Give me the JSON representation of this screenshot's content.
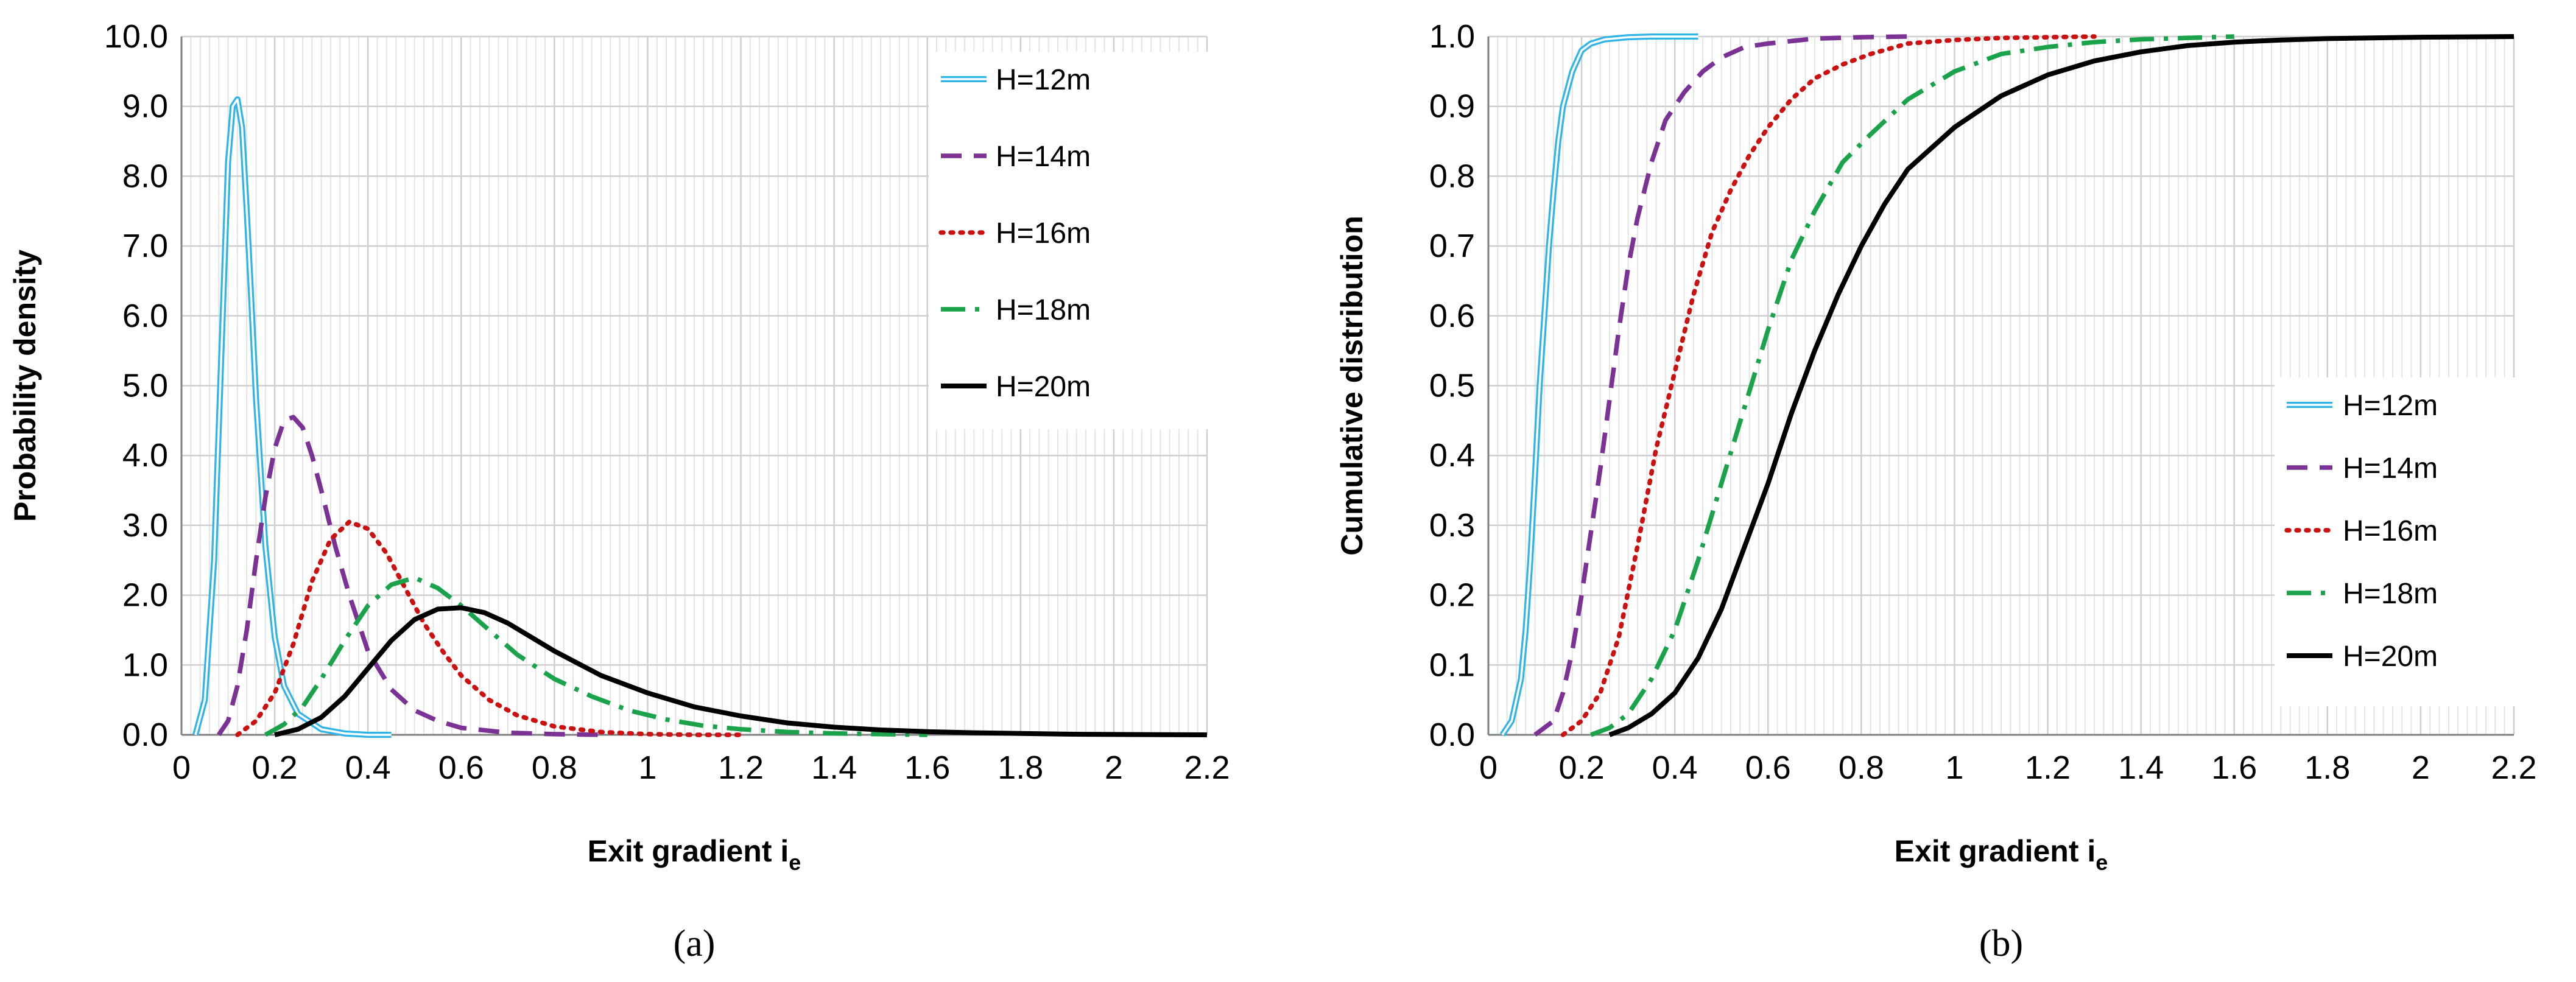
{
  "chart_data": [
    {
      "type": "line",
      "panel": "a",
      "panel_label": "(a)",
      "xlabel": "Exit gradient i",
      "xlabel_sub": "e",
      "ylabel": "Probability density",
      "xlim": [
        0,
        2.2
      ],
      "ylim": [
        0,
        10
      ],
      "x_ticks": [
        0,
        0.2,
        0.4,
        0.6,
        0.8,
        1,
        1.2,
        1.4,
        1.6,
        1.8,
        2,
        2.2
      ],
      "x_tick_labels": [
        "0",
        "0.2",
        "0.4",
        "0.6",
        "0.8",
        "1",
        "1.2",
        "1.4",
        "1.6",
        "1.8",
        "2",
        "2.2"
      ],
      "y_ticks": [
        0,
        1,
        2,
        3,
        4,
        5,
        6,
        7,
        8,
        9,
        10
      ],
      "y_tick_labels": [
        "0.0",
        "1.0",
        "2.0",
        "3.0",
        "4.0",
        "5.0",
        "6.0",
        "7.0",
        "8.0",
        "9.0",
        "10.0"
      ],
      "grid": true,
      "legend_position": "top-right",
      "series": [
        {
          "name": "H=12m",
          "color": "#2eb4e6",
          "style": "double",
          "x": [
            0.03,
            0.05,
            0.07,
            0.09,
            0.1,
            0.11,
            0.12,
            0.13,
            0.14,
            0.15,
            0.16,
            0.18,
            0.2,
            0.22,
            0.25,
            0.3,
            0.35,
            0.4,
            0.45
          ],
          "y": [
            0.0,
            0.5,
            2.5,
            6.3,
            8.2,
            9.0,
            9.1,
            8.7,
            7.5,
            6.2,
            4.8,
            2.7,
            1.4,
            0.7,
            0.3,
            0.08,
            0.02,
            0.0,
            0.0
          ]
        },
        {
          "name": "H=14m",
          "color": "#7b3294",
          "style": "dash",
          "x": [
            0.08,
            0.1,
            0.12,
            0.14,
            0.16,
            0.18,
            0.2,
            0.22,
            0.24,
            0.26,
            0.28,
            0.3,
            0.33,
            0.36,
            0.4,
            0.45,
            0.5,
            0.55,
            0.6,
            0.7,
            0.8,
            0.9
          ],
          "y": [
            0.0,
            0.2,
            0.7,
            1.5,
            2.5,
            3.4,
            4.1,
            4.5,
            4.55,
            4.4,
            4.0,
            3.5,
            2.7,
            2.0,
            1.2,
            0.65,
            0.35,
            0.2,
            0.1,
            0.03,
            0.01,
            0.0
          ]
        },
        {
          "name": "H=16m",
          "color": "#cc1111",
          "style": "dot",
          "x": [
            0.12,
            0.16,
            0.2,
            0.24,
            0.28,
            0.32,
            0.36,
            0.4,
            0.44,
            0.48,
            0.52,
            0.56,
            0.6,
            0.66,
            0.72,
            0.8,
            0.9,
            1.0,
            1.1,
            1.2
          ],
          "y": [
            0.0,
            0.2,
            0.6,
            1.3,
            2.2,
            2.8,
            3.05,
            2.95,
            2.6,
            2.1,
            1.6,
            1.2,
            0.85,
            0.5,
            0.28,
            0.12,
            0.04,
            0.01,
            0.0,
            0.0
          ]
        },
        {
          "name": "H=18m",
          "color": "#1aa34a",
          "style": "dashdot",
          "x": [
            0.18,
            0.22,
            0.26,
            0.3,
            0.35,
            0.4,
            0.45,
            0.5,
            0.55,
            0.6,
            0.66,
            0.72,
            0.8,
            0.88,
            0.96,
            1.04,
            1.12,
            1.2,
            1.3,
            1.4,
            1.5,
            1.6
          ],
          "y": [
            0.0,
            0.15,
            0.4,
            0.8,
            1.35,
            1.85,
            2.15,
            2.25,
            2.1,
            1.85,
            1.5,
            1.15,
            0.8,
            0.55,
            0.35,
            0.22,
            0.13,
            0.08,
            0.04,
            0.02,
            0.01,
            0.0
          ]
        },
        {
          "name": "H=20m",
          "color": "#000000",
          "style": "solid",
          "x": [
            0.2,
            0.25,
            0.3,
            0.35,
            0.4,
            0.45,
            0.5,
            0.55,
            0.6,
            0.65,
            0.7,
            0.75,
            0.8,
            0.9,
            1.0,
            1.1,
            1.2,
            1.3,
            1.4,
            1.5,
            1.6,
            1.7,
            1.8,
            1.9,
            2.0,
            2.2
          ],
          "y": [
            0.0,
            0.08,
            0.25,
            0.55,
            0.95,
            1.35,
            1.65,
            1.8,
            1.82,
            1.75,
            1.6,
            1.4,
            1.2,
            0.85,
            0.6,
            0.4,
            0.27,
            0.17,
            0.11,
            0.07,
            0.045,
            0.03,
            0.02,
            0.01,
            0.005,
            0.0
          ]
        }
      ]
    },
    {
      "type": "line",
      "panel": "b",
      "panel_label": "(b)",
      "xlabel": "Exit gradient i",
      "xlabel_sub": "e",
      "ylabel": "Cumulative distribution",
      "xlim": [
        0,
        2.2
      ],
      "ylim": [
        0,
        1
      ],
      "x_ticks": [
        0,
        0.2,
        0.4,
        0.6,
        0.8,
        1,
        1.2,
        1.4,
        1.6,
        1.8,
        2,
        2.2
      ],
      "x_tick_labels": [
        "0",
        "0.2",
        "0.4",
        "0.6",
        "0.8",
        "1",
        "1.2",
        "1.4",
        "1.6",
        "1.8",
        "2",
        "2.2"
      ],
      "y_ticks": [
        0,
        0.1,
        0.2,
        0.3,
        0.4,
        0.5,
        0.6,
        0.7,
        0.8,
        0.9,
        1
      ],
      "y_tick_labels": [
        "0.0",
        "0.1",
        "0.2",
        "0.3",
        "0.4",
        "0.5",
        "0.6",
        "0.7",
        "0.8",
        "0.9",
        "1.0"
      ],
      "grid": true,
      "legend_position": "center-right",
      "series": [
        {
          "name": "H=12m",
          "color": "#2eb4e6",
          "style": "double",
          "x": [
            0.03,
            0.05,
            0.07,
            0.08,
            0.09,
            0.1,
            0.11,
            0.12,
            0.13,
            0.14,
            0.15,
            0.16,
            0.18,
            0.2,
            0.22,
            0.25,
            0.3,
            0.35,
            0.45
          ],
          "y": [
            0.0,
            0.02,
            0.08,
            0.15,
            0.25,
            0.37,
            0.5,
            0.6,
            0.7,
            0.78,
            0.85,
            0.9,
            0.95,
            0.98,
            0.99,
            0.996,
            0.999,
            1.0,
            1.0
          ]
        },
        {
          "name": "H=14m",
          "color": "#7b3294",
          "style": "dash",
          "x": [
            0.1,
            0.14,
            0.16,
            0.18,
            0.2,
            0.22,
            0.24,
            0.26,
            0.28,
            0.3,
            0.32,
            0.35,
            0.38,
            0.42,
            0.46,
            0.5,
            0.55,
            0.6,
            0.7,
            0.8,
            0.9
          ],
          "y": [
            0.0,
            0.02,
            0.06,
            0.12,
            0.2,
            0.29,
            0.38,
            0.48,
            0.58,
            0.67,
            0.74,
            0.82,
            0.88,
            0.92,
            0.95,
            0.97,
            0.985,
            0.99,
            0.997,
            0.999,
            1.0
          ]
        },
        {
          "name": "H=16m",
          "color": "#cc1111",
          "style": "dot",
          "x": [
            0.16,
            0.2,
            0.24,
            0.28,
            0.32,
            0.36,
            0.4,
            0.44,
            0.48,
            0.52,
            0.56,
            0.6,
            0.65,
            0.7,
            0.76,
            0.82,
            0.9,
            1.0,
            1.1,
            1.2,
            1.3
          ],
          "y": [
            0.0,
            0.02,
            0.06,
            0.14,
            0.27,
            0.41,
            0.52,
            0.63,
            0.72,
            0.78,
            0.83,
            0.87,
            0.91,
            0.94,
            0.96,
            0.975,
            0.99,
            0.995,
            0.998,
            0.999,
            1.0
          ]
        },
        {
          "name": "H=18m",
          "color": "#1aa34a",
          "style": "dashdot",
          "x": [
            0.22,
            0.26,
            0.3,
            0.35,
            0.4,
            0.45,
            0.5,
            0.55,
            0.6,
            0.65,
            0.7,
            0.76,
            0.82,
            0.9,
            1.0,
            1.1,
            1.2,
            1.3,
            1.4,
            1.5,
            1.6
          ],
          "y": [
            0.0,
            0.01,
            0.03,
            0.08,
            0.15,
            0.25,
            0.36,
            0.47,
            0.58,
            0.68,
            0.75,
            0.82,
            0.86,
            0.91,
            0.95,
            0.975,
            0.985,
            0.992,
            0.996,
            0.998,
            1.0
          ]
        },
        {
          "name": "H=20m",
          "color": "#000000",
          "style": "solid",
          "x": [
            0.26,
            0.3,
            0.35,
            0.4,
            0.45,
            0.5,
            0.55,
            0.6,
            0.65,
            0.7,
            0.75,
            0.8,
            0.85,
            0.9,
            1.0,
            1.1,
            1.2,
            1.3,
            1.4,
            1.5,
            1.6,
            1.7,
            1.8,
            2.0,
            2.2
          ],
          "y": [
            0.0,
            0.01,
            0.03,
            0.06,
            0.11,
            0.18,
            0.27,
            0.36,
            0.46,
            0.55,
            0.63,
            0.7,
            0.76,
            0.81,
            0.87,
            0.915,
            0.945,
            0.965,
            0.978,
            0.987,
            0.992,
            0.995,
            0.997,
            0.999,
            1.0
          ]
        }
      ]
    }
  ]
}
